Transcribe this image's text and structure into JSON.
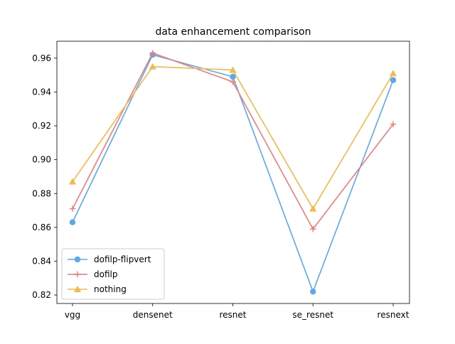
{
  "chart_data": {
    "type": "line",
    "title": "data enhancement comparison",
    "xlabel": "",
    "ylabel": "",
    "categories": [
      "vgg",
      "densenet",
      "resnet",
      "se_resnet",
      "resnext"
    ],
    "ylim": [
      0.815,
      0.97
    ],
    "yticks": [
      0.82,
      0.84,
      0.86,
      0.88,
      0.9,
      0.92,
      0.94,
      0.96
    ],
    "ytick_labels": [
      "0.82",
      "0.84",
      "0.86",
      "0.88",
      "0.90",
      "0.92",
      "0.94",
      "0.96"
    ],
    "grid": false,
    "legend_position": "lower-left",
    "series": [
      {
        "name": "dofilp-flipvert",
        "values": [
          0.863,
          0.962,
          0.949,
          0.822,
          0.947
        ],
        "color": "#5aa9f0",
        "marker": "circle"
      },
      {
        "name": "dofilp",
        "values": [
          0.871,
          0.963,
          0.946,
          0.859,
          0.921
        ],
        "color": "#ee7b7b",
        "marker": "plus"
      },
      {
        "name": "nothing",
        "values": [
          0.887,
          0.955,
          0.953,
          0.871,
          0.951
        ],
        "color": "#f5b84a",
        "marker": "triangle"
      }
    ]
  }
}
